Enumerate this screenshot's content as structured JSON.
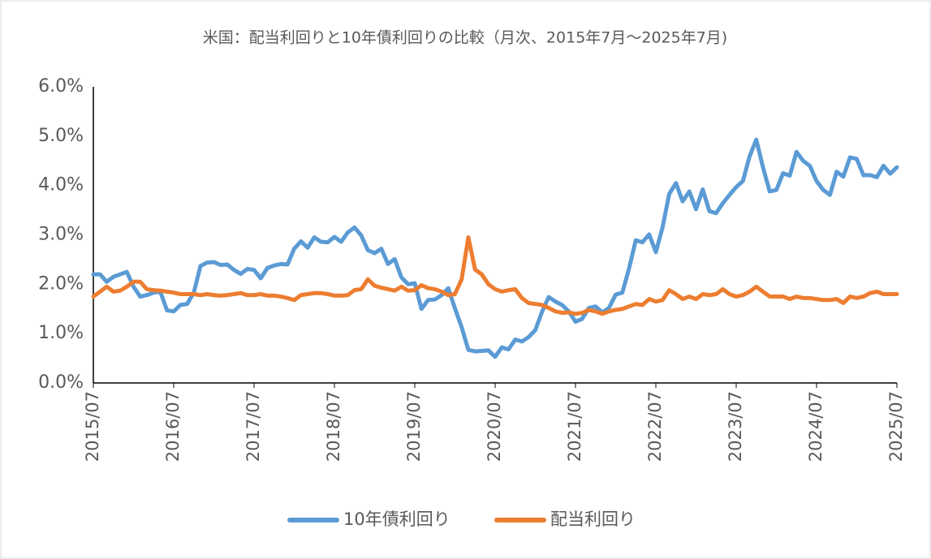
{
  "chart_data": {
    "type": "line",
    "title": "米国：配当利回りと10年債利回りの比較（月次、2015年7月～2025年7月)",
    "categories": [
      "2015/07",
      null,
      null,
      null,
      null,
      null,
      null,
      null,
      null,
      null,
      null,
      null,
      "2016/07",
      null,
      null,
      null,
      null,
      null,
      null,
      null,
      null,
      null,
      null,
      null,
      "2017/07",
      null,
      null,
      null,
      null,
      null,
      null,
      null,
      null,
      null,
      null,
      null,
      "2018/07",
      null,
      null,
      null,
      null,
      null,
      null,
      null,
      null,
      null,
      null,
      null,
      "2019/07",
      null,
      null,
      null,
      null,
      null,
      null,
      null,
      null,
      null,
      null,
      null,
      "2020/07",
      null,
      null,
      null,
      null,
      null,
      null,
      null,
      null,
      null,
      null,
      null,
      "2021/07",
      null,
      null,
      null,
      null,
      null,
      null,
      null,
      null,
      null,
      null,
      null,
      "2022/07",
      null,
      null,
      null,
      null,
      null,
      null,
      null,
      null,
      null,
      null,
      null,
      "2023/07",
      null,
      null,
      null,
      null,
      null,
      null,
      null,
      null,
      null,
      null,
      null,
      "2024/07",
      null,
      null,
      null,
      null,
      null,
      null,
      null,
      null,
      null,
      null,
      null,
      "2025/07"
    ],
    "series": [
      {
        "name": "10年債利回り",
        "color": "#5b9bd5",
        "values": [
          2.2,
          2.2,
          2.05,
          2.15,
          2.2,
          2.25,
          1.95,
          1.75,
          1.78,
          1.83,
          1.85,
          1.47,
          1.45,
          1.58,
          1.6,
          1.83,
          2.37,
          2.44,
          2.45,
          2.39,
          2.4,
          2.29,
          2.21,
          2.31,
          2.29,
          2.12,
          2.33,
          2.38,
          2.41,
          2.4,
          2.72,
          2.87,
          2.74,
          2.95,
          2.86,
          2.85,
          2.96,
          2.86,
          3.05,
          3.15,
          2.99,
          2.69,
          2.63,
          2.72,
          2.41,
          2.51,
          2.14,
          2.0,
          2.02,
          1.5,
          1.68,
          1.69,
          1.78,
          1.92,
          1.51,
          1.13,
          0.67,
          0.64,
          0.65,
          0.66,
          0.53,
          0.72,
          0.68,
          0.88,
          0.84,
          0.93,
          1.07,
          1.44,
          1.74,
          1.65,
          1.58,
          1.45,
          1.24,
          1.3,
          1.52,
          1.55,
          1.43,
          1.52,
          1.79,
          1.83,
          2.32,
          2.89,
          2.85,
          3.01,
          2.65,
          3.15,
          3.83,
          4.05,
          3.68,
          3.88,
          3.52,
          3.92,
          3.48,
          3.44,
          3.64,
          3.81,
          3.97,
          4.09,
          4.59,
          4.93,
          4.37,
          3.88,
          3.91,
          4.25,
          4.2,
          4.68,
          4.5,
          4.4,
          4.09,
          3.91,
          3.81,
          4.28,
          4.18,
          4.57,
          4.54,
          4.21,
          4.21,
          4.17,
          4.4,
          4.24,
          4.37
        ]
      },
      {
        "name": "配当利回り",
        "color": "#ed7d31",
        "values": [
          1.75,
          1.85,
          1.95,
          1.85,
          1.87,
          1.95,
          2.05,
          2.05,
          1.9,
          1.88,
          1.87,
          1.85,
          1.83,
          1.8,
          1.8,
          1.8,
          1.78,
          1.8,
          1.78,
          1.77,
          1.78,
          1.8,
          1.82,
          1.78,
          1.78,
          1.8,
          1.77,
          1.77,
          1.75,
          1.72,
          1.68,
          1.78,
          1.8,
          1.82,
          1.82,
          1.8,
          1.77,
          1.77,
          1.78,
          1.88,
          1.9,
          2.1,
          1.97,
          1.93,
          1.9,
          1.87,
          1.95,
          1.87,
          1.88,
          1.98,
          1.92,
          1.9,
          1.85,
          1.78,
          1.8,
          2.1,
          2.95,
          2.3,
          2.2,
          2.0,
          1.9,
          1.85,
          1.88,
          1.9,
          1.72,
          1.62,
          1.6,
          1.58,
          1.52,
          1.45,
          1.42,
          1.43,
          1.4,
          1.42,
          1.48,
          1.45,
          1.4,
          1.45,
          1.48,
          1.5,
          1.55,
          1.6,
          1.58,
          1.7,
          1.65,
          1.68,
          1.88,
          1.8,
          1.7,
          1.75,
          1.7,
          1.8,
          1.78,
          1.8,
          1.9,
          1.8,
          1.75,
          1.78,
          1.85,
          1.95,
          1.85,
          1.75,
          1.75,
          1.75,
          1.7,
          1.75,
          1.72,
          1.72,
          1.7,
          1.68,
          1.68,
          1.7,
          1.62,
          1.75,
          1.72,
          1.75,
          1.82,
          1.85,
          1.8,
          1.8,
          1.8
        ]
      }
    ],
    "ylim": [
      0,
      6
    ],
    "yticks": [
      {
        "value": 0,
        "label": "0.0%"
      },
      {
        "value": 1,
        "label": "1.0%"
      },
      {
        "value": 2,
        "label": "2.0%"
      },
      {
        "value": 3,
        "label": "3.0%"
      },
      {
        "value": 4,
        "label": "4.0%"
      },
      {
        "value": 5,
        "label": "5.0%"
      },
      {
        "value": 6,
        "label": "6.0%"
      }
    ],
    "grid": false,
    "legend": "bottom"
  }
}
